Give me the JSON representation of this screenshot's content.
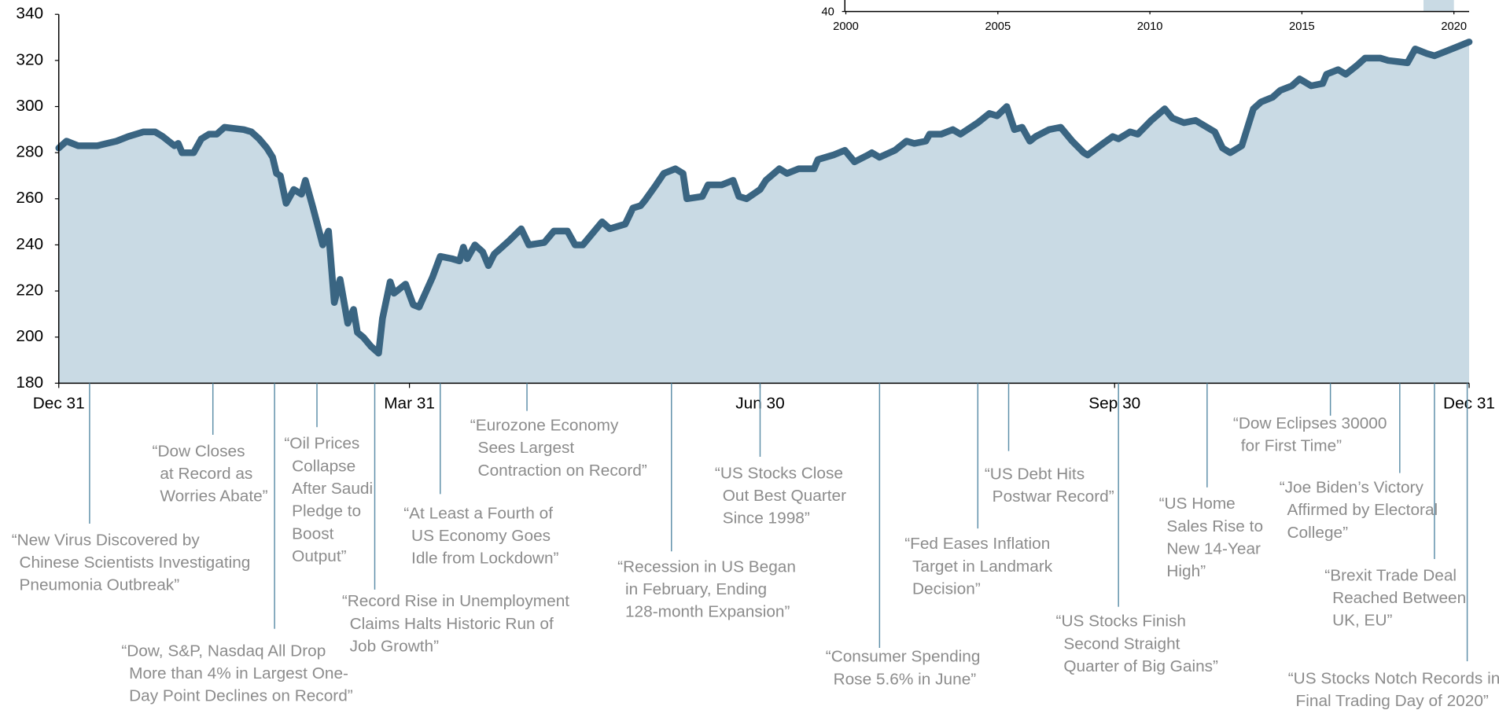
{
  "chart_data": [
    {
      "type": "area",
      "x": [
        0,
        2,
        5,
        10,
        15,
        18,
        22,
        25,
        27,
        30,
        31,
        32,
        35,
        37,
        39,
        41,
        43,
        48,
        50,
        52,
        54,
        55.5,
        56.5,
        57.5,
        59,
        61,
        63,
        64,
        66,
        68.5,
        70,
        71.5,
        73,
        75,
        76.5,
        77.5,
        79,
        81,
        83,
        84,
        86,
        87,
        90,
        92,
        93.5,
        97,
        99,
        102,
        104,
        105,
        106,
        108,
        110,
        111.5,
        113,
        117,
        120,
        122,
        126,
        128.5,
        132,
        134,
        136,
        139,
        141,
        143,
        147,
        149,
        151,
        152,
        155,
        157,
        160,
        162,
        163,
        167,
        168.5,
        172,
        175,
        176.5,
        178.5,
        182,
        183.5,
        187,
        189,
        192,
        196,
        197,
        201,
        204,
        206.5,
        210,
        211,
        213,
        217,
        220,
        222,
        225,
        226,
        229,
        232,
        234,
        238.5,
        240,
        241.5,
        243.5,
        246,
        248,
        250,
        252,
        253.5,
        257,
        260,
        263,
        266,
        267,
        271,
        273.5,
        275,
        278,
        280,
        283.5,
        287,
        289,
        292,
        295,
        297,
        300,
        302,
        304,
        307,
        310,
        312,
        315,
        317,
        320,
        322,
        325,
        328,
        329,
        332,
        334,
        337,
        339,
        343,
        345,
        350,
        352,
        355,
        357,
        360,
        363,
        366
      ],
      "values": [
        282,
        285,
        283,
        283,
        285,
        287,
        289,
        289,
        287,
        283,
        284,
        280,
        280,
        286,
        288,
        288,
        291,
        290,
        289,
        286,
        282,
        278,
        271,
        270,
        258,
        264,
        262,
        268,
        256,
        240,
        246,
        215,
        225,
        206,
        212,
        202,
        200,
        196,
        193,
        208,
        224,
        219,
        223,
        214,
        213,
        226,
        235,
        234,
        233,
        239,
        234,
        240,
        237,
        231,
        236,
        242,
        247,
        240,
        241,
        246,
        246,
        240,
        240,
        246,
        250,
        247,
        249,
        256,
        257,
        259,
        266,
        271,
        273,
        271,
        260,
        261,
        266,
        266,
        268,
        261,
        260,
        264,
        268,
        273,
        271,
        273,
        273,
        277,
        279,
        281,
        276,
        279,
        280,
        278,
        281,
        285,
        284,
        285,
        288,
        288,
        290,
        288,
        293,
        295,
        297,
        296,
        300,
        290,
        291,
        285,
        287,
        290,
        291,
        285,
        280,
        279,
        284,
        287,
        286,
        289,
        288,
        294,
        299,
        295,
        293,
        294,
        292,
        289,
        282,
        280,
        283,
        299,
        302,
        304,
        307,
        309,
        312,
        309,
        310,
        314,
        316,
        314,
        318,
        321,
        321,
        320,
        319,
        325,
        323,
        322,
        324,
        326,
        328
      ],
      "color": "#3a6582",
      "fill": "#c9dae4",
      "xlim": [
        0,
        366
      ],
      "xticks": [
        {
          "value": 0,
          "label": "Dec 31"
        },
        {
          "value": 91,
          "label": "Mar 31"
        },
        {
          "value": 182,
          "label": "Jun 30"
        },
        {
          "value": 274,
          "label": "Sep 30"
        },
        {
          "value": 366,
          "label": "Dec 31"
        }
      ],
      "ylim": [
        180,
        340
      ],
      "yticks": [
        180,
        200,
        220,
        240,
        260,
        280,
        300,
        320,
        340
      ],
      "annotations": [
        {
          "x": 8,
          "lines": [
            "“New Virus Discovered by",
            "Chinese Scientists Investigating",
            "Pneumonia Outbreak”"
          ]
        },
        {
          "x": 40,
          "lines": [
            "“Dow Closes",
            "at Record as",
            "Worries Abate”"
          ]
        },
        {
          "x": 56,
          "lines": [
            "“Dow, S&P, Nasdaq All Drop",
            "More than 4% in Largest One-",
            "Day Point Declines on Record”"
          ]
        },
        {
          "x": 67,
          "lines": [
            "“Oil Prices",
            "Collapse",
            "After Saudi",
            "Pledge to",
            "Boost",
            "Output”"
          ]
        },
        {
          "x": 82,
          "lines": [
            "“Record Rise in Unemployment",
            "Claims Halts Historic Run of",
            "Job Growth”"
          ]
        },
        {
          "x": 99,
          "lines": [
            "“At Least a Fourth of",
            "US Economy Goes",
            "Idle from Lockdown”"
          ]
        },
        {
          "x": 121.5,
          "lines": [
            "“Eurozone Economy",
            "Sees Largest",
            "Contraction on Record”"
          ]
        },
        {
          "x": 159,
          "lines": [
            "“Recession in US Began",
            "in February, Ending",
            "128-month Expansion”"
          ]
        },
        {
          "x": 182,
          "lines": [
            "“US Stocks Close",
            "Out Best Quarter",
            "Since 1998”"
          ]
        },
        {
          "x": 213,
          "lines": [
            "“Consumer Spending",
            "Rose 5.6% in June”"
          ]
        },
        {
          "x": 238.5,
          "lines": [
            "“Fed Eases Inflation",
            "Target in Landmark",
            "Decision”"
          ]
        },
        {
          "x": 246.5,
          "lines": [
            "“US Debt Hits",
            "Postwar Record”"
          ]
        },
        {
          "x": 275,
          "lines": [
            "“US Stocks Finish",
            "Second Straight",
            "Quarter of Big Gains”"
          ]
        },
        {
          "x": 298,
          "lines": [
            "“US Home",
            "Sales Rise to",
            "New 14-Year",
            "High”"
          ]
        },
        {
          "x": 330,
          "lines": [
            "“Dow Eclipses 30000",
            "for First Time”"
          ]
        },
        {
          "x": 348,
          "lines": [
            "“Joe Biden’s Victory",
            "Affirmed by Electoral",
            "College”"
          ]
        },
        {
          "x": 357,
          "lines": [
            "“Brexit Trade Deal",
            "Reached Between",
            "UK, EU”"
          ]
        },
        {
          "x": 365.5,
          "lines": [
            "“US Stocks Notch Records in",
            "Final Trading Day of 2020”"
          ]
        }
      ]
    },
    {
      "type": "inset",
      "xlim": [
        2000,
        2020.5
      ],
      "xticks": [
        2000,
        2005,
        2010,
        2015,
        2020
      ],
      "yticks": [
        40
      ],
      "highlight": [
        2019,
        2020
      ],
      "fill": "#c9dae4"
    }
  ]
}
